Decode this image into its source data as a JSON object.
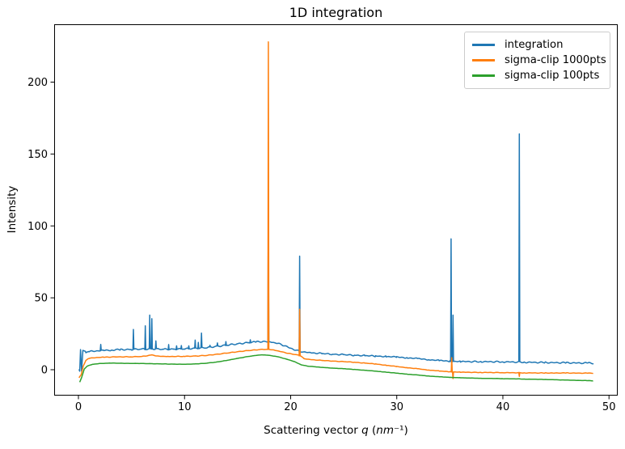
{
  "window": {
    "background": "#ffffff"
  },
  "chart_data": {
    "type": "line",
    "title": "1D integration",
    "xlabel": "Scattering vector q (nm⁻¹)",
    "xlabel_parts": [
      {
        "text": "Scattering vector "
      },
      {
        "text": "q"
      },
      {
        "text": " ("
      },
      {
        "text": "nm"
      },
      {
        "text": "⁻¹)"
      }
    ],
    "ylabel": "Intensity",
    "xlim": [
      -2.4,
      50.9
    ],
    "ylim": [
      -20.5,
      240
    ],
    "xticks": [
      0,
      10,
      20,
      30,
      40,
      50
    ],
    "yticks": [
      0,
      50,
      100,
      150,
      200
    ],
    "grid": false,
    "legend": {
      "position": "upper right",
      "entries": [
        {
          "label": "integration",
          "color": "#1f77b4"
        },
        {
          "label": "sigma-clip 1000pts",
          "color": "#ff7f0e"
        },
        {
          "label": "sigma-clip 100pts",
          "color": "#2ca02c"
        }
      ]
    },
    "axis_color": "#000000",
    "series": [
      {
        "name": "integration",
        "color": "#1f77b4",
        "noise": 0.5,
        "baseline": [
          [
            0.05,
            0.2
          ],
          [
            0.12,
            -0.6
          ],
          [
            0.2,
            13.6
          ],
          [
            0.3,
            -0.8
          ],
          [
            0.42,
            13.8
          ],
          [
            0.7,
            12.1
          ],
          [
            1.0,
            12.6
          ],
          [
            1.6,
            13.0
          ],
          [
            2.4,
            13.4
          ],
          [
            3.2,
            13.7
          ],
          [
            4.0,
            14.0
          ],
          [
            5.0,
            14.1
          ],
          [
            6.0,
            14.3
          ],
          [
            7.0,
            14.5
          ],
          [
            8.0,
            14.2
          ],
          [
            9.0,
            14.3
          ],
          [
            10.0,
            14.5
          ],
          [
            11.0,
            14.9
          ],
          [
            12.0,
            15.3
          ],
          [
            13.0,
            16.2
          ],
          [
            14.0,
            17.1
          ],
          [
            15.0,
            18.0
          ],
          [
            16.0,
            18.8
          ],
          [
            16.8,
            19.4
          ],
          [
            17.4,
            19.6
          ],
          [
            18.2,
            19.2
          ],
          [
            18.8,
            18.3
          ],
          [
            19.4,
            16.8
          ],
          [
            20.0,
            14.9
          ],
          [
            20.6,
            13.3
          ],
          [
            21.2,
            12.3
          ],
          [
            22.0,
            11.7
          ],
          [
            23.0,
            11.2
          ],
          [
            24.0,
            10.8
          ],
          [
            25.0,
            10.4
          ],
          [
            26.0,
            10.1
          ],
          [
            27.0,
            9.8
          ],
          [
            28.0,
            9.5
          ],
          [
            29.0,
            9.2
          ],
          [
            30.0,
            8.8
          ],
          [
            31.0,
            8.3
          ],
          [
            32.0,
            7.7
          ],
          [
            33.0,
            7.0
          ],
          [
            34.0,
            6.4
          ],
          [
            35.0,
            5.9
          ],
          [
            36.0,
            5.7
          ],
          [
            38.0,
            5.6
          ],
          [
            40.0,
            5.5
          ],
          [
            42.0,
            5.2
          ],
          [
            44.0,
            5.0
          ],
          [
            46.0,
            4.8
          ],
          [
            48.0,
            4.6
          ],
          [
            48.5,
            4.5
          ]
        ],
        "spikes": [
          [
            2.1,
            17.6
          ],
          [
            5.18,
            28
          ],
          [
            6.3,
            30.5
          ],
          [
            6.72,
            38
          ],
          [
            6.92,
            35.5
          ],
          [
            7.3,
            20
          ],
          [
            8.5,
            17.5
          ],
          [
            9.25,
            16.6
          ],
          [
            9.7,
            16.8
          ],
          [
            10.4,
            16.6
          ],
          [
            11.0,
            20.6
          ],
          [
            11.3,
            19.0
          ],
          [
            11.6,
            25.5
          ],
          [
            12.4,
            17.0
          ],
          [
            13.1,
            18.6
          ],
          [
            13.9,
            19.6
          ],
          [
            16.2,
            20.8
          ],
          [
            17.9,
            103
          ],
          [
            20.85,
            79
          ],
          [
            35.12,
            91
          ],
          [
            35.3,
            38
          ],
          [
            41.55,
            164
          ]
        ]
      },
      {
        "name": "sigma-clip 1000pts",
        "color": "#ff7f0e",
        "noise": 0.18,
        "baseline": [
          [
            0.05,
            -5.6
          ],
          [
            0.25,
            -3.5
          ],
          [
            0.45,
            2.5
          ],
          [
            0.7,
            6.6
          ],
          [
            1.0,
            7.9
          ],
          [
            1.6,
            8.4
          ],
          [
            2.4,
            8.7
          ],
          [
            3.5,
            8.9
          ],
          [
            5.0,
            9.0
          ],
          [
            6.0,
            9.2
          ],
          [
            6.9,
            10.2
          ],
          [
            7.6,
            9.4
          ],
          [
            8.5,
            9.2
          ],
          [
            10.0,
            9.3
          ],
          [
            11.0,
            9.5
          ],
          [
            12.0,
            9.9
          ],
          [
            13.0,
            10.7
          ],
          [
            14.0,
            11.6
          ],
          [
            15.0,
            12.5
          ],
          [
            16.0,
            13.3
          ],
          [
            17.0,
            14.0
          ],
          [
            17.6,
            14.2
          ],
          [
            18.4,
            13.8
          ],
          [
            19.0,
            12.7
          ],
          [
            19.6,
            11.7
          ],
          [
            20.2,
            10.8
          ],
          [
            20.8,
            10.2
          ],
          [
            21.3,
            7.6
          ],
          [
            22.0,
            7.0
          ],
          [
            23.0,
            6.4
          ],
          [
            24.0,
            6.0
          ],
          [
            25.0,
            5.6
          ],
          [
            26.0,
            5.2
          ],
          [
            27.0,
            4.6
          ],
          [
            28.0,
            4.0
          ],
          [
            29.0,
            3.1
          ],
          [
            30.0,
            2.2
          ],
          [
            31.0,
            1.4
          ],
          [
            32.0,
            0.6
          ],
          [
            33.0,
            -0.2
          ],
          [
            34.0,
            -0.9
          ],
          [
            35.0,
            -1.4
          ],
          [
            36.0,
            -1.7
          ],
          [
            38.0,
            -1.9
          ],
          [
            40.0,
            -2.0
          ],
          [
            42.0,
            -2.2
          ],
          [
            44.0,
            -2.3
          ],
          [
            46.0,
            -2.3
          ],
          [
            48.0,
            -2.4
          ],
          [
            48.5,
            -2.4
          ]
        ],
        "spikes": [
          [
            17.9,
            228
          ],
          [
            20.85,
            42
          ],
          [
            35.18,
            8.4
          ],
          [
            35.3,
            -6.2
          ],
          [
            41.55,
            -4.6
          ]
        ]
      },
      {
        "name": "sigma-clip 100pts",
        "color": "#2ca02c",
        "noise": 0.06,
        "baseline": [
          [
            0.12,
            -8.6
          ],
          [
            0.3,
            -5.5
          ],
          [
            0.55,
            0.5
          ],
          [
            0.85,
            2.6
          ],
          [
            1.3,
            3.7
          ],
          [
            2.0,
            4.3
          ],
          [
            3.0,
            4.6
          ],
          [
            4.0,
            4.5
          ],
          [
            5.0,
            4.4
          ],
          [
            6.0,
            4.3
          ],
          [
            7.0,
            4.2
          ],
          [
            8.0,
            4.0
          ],
          [
            9.0,
            3.9
          ],
          [
            10.0,
            3.8
          ],
          [
            11.0,
            4.0
          ],
          [
            12.0,
            4.5
          ],
          [
            13.0,
            5.3
          ],
          [
            14.0,
            6.5
          ],
          [
            15.0,
            7.9
          ],
          [
            16.0,
            9.2
          ],
          [
            16.8,
            10.0
          ],
          [
            17.3,
            10.4
          ],
          [
            18.0,
            10.0
          ],
          [
            18.8,
            9.0
          ],
          [
            19.6,
            7.4
          ],
          [
            20.4,
            5.5
          ],
          [
            21.0,
            3.4
          ],
          [
            21.6,
            2.5
          ],
          [
            22.2,
            2.1
          ],
          [
            23.0,
            1.6
          ],
          [
            24.0,
            1.1
          ],
          [
            25.0,
            0.7
          ],
          [
            26.0,
            0.2
          ],
          [
            27.0,
            -0.4
          ],
          [
            28.0,
            -1.0
          ],
          [
            29.0,
            -1.7
          ],
          [
            30.0,
            -2.4
          ],
          [
            31.0,
            -3.1
          ],
          [
            32.0,
            -3.7
          ],
          [
            33.0,
            -4.4
          ],
          [
            34.0,
            -4.9
          ],
          [
            35.0,
            -5.3
          ],
          [
            36.0,
            -5.6
          ],
          [
            37.0,
            -5.8
          ],
          [
            38.0,
            -6.0
          ],
          [
            40.0,
            -6.2
          ],
          [
            42.0,
            -6.5
          ],
          [
            44.0,
            -6.8
          ],
          [
            46.0,
            -7.2
          ],
          [
            48.0,
            -7.6
          ],
          [
            48.5,
            -7.7
          ]
        ],
        "spikes": []
      }
    ]
  }
}
